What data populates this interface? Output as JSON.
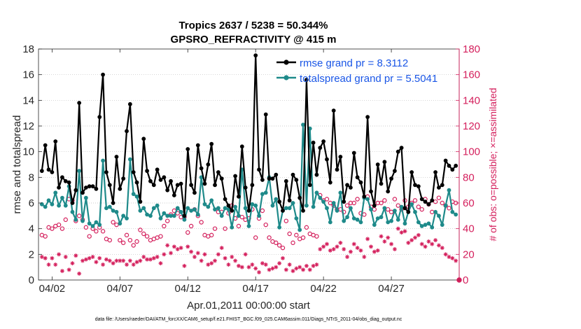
{
  "chart_data": {
    "type": "line",
    "title": "Tropics 2637 / 5238 = 50.344%",
    "subtitle": "GPSRO_REFRACTIVITY @ 415 m",
    "xlabel": "Apr.01,2011 00:00:00 start",
    "ylabel": "rmse and totalspread",
    "ylabel_right": "# of obs: o=possible; ×=assimilated",
    "footer": "data file: /Users/raeder/DAI/ATM_forcXX/CAM6_setup/f.e21.FHIST_BGC.f09_025.CAM6assim.011/Diags_NTrS_2011-04/obs_diag_output.nc",
    "xlim": [
      1.0,
      32.0
    ],
    "ylim": [
      0,
      18
    ],
    "ylim_right": [
      0,
      180
    ],
    "x_ticks": [
      2,
      7,
      12,
      17,
      22,
      27
    ],
    "x_tick_labels": [
      "04/02",
      "04/07",
      "04/12",
      "04/17",
      "04/22",
      "04/27"
    ],
    "y_ticks": [
      0,
      2,
      4,
      6,
      8,
      10,
      12,
      14,
      16,
      18
    ],
    "y_tick_labels": [
      "0",
      "2",
      "4",
      "6",
      "8",
      "10",
      "12",
      "14",
      "16",
      "18"
    ],
    "y_right_ticks": [
      0,
      20,
      40,
      60,
      80,
      100,
      120,
      140,
      160,
      180
    ],
    "y_right_tick_labels": [
      "0",
      "20",
      "40",
      "60",
      "80",
      "100",
      "120",
      "140",
      "160",
      "180"
    ],
    "grid": "horizontal-dotted",
    "legend_position": "top-right",
    "x": [
      1.25,
      1.5,
      1.75,
      2.0,
      2.25,
      2.5,
      2.75,
      3.0,
      3.25,
      3.5,
      3.75,
      4.0,
      4.25,
      4.5,
      4.75,
      5.0,
      5.25,
      5.5,
      5.75,
      6.0,
      6.25,
      6.5,
      6.75,
      7.0,
      7.25,
      7.5,
      7.75,
      8.0,
      8.25,
      8.5,
      8.75,
      9.0,
      9.25,
      9.5,
      9.75,
      10.0,
      10.25,
      10.5,
      10.75,
      11.0,
      11.25,
      11.5,
      11.75,
      12.0,
      12.25,
      12.5,
      12.75,
      13.0,
      13.25,
      13.5,
      13.75,
      14.0,
      14.25,
      14.5,
      14.75,
      15.0,
      15.25,
      15.5,
      15.75,
      16.0,
      16.25,
      16.5,
      16.75,
      17.0,
      17.25,
      17.5,
      17.75,
      18.0,
      18.25,
      18.5,
      18.75,
      19.0,
      19.25,
      19.5,
      19.75,
      20.0,
      20.25,
      20.5,
      20.75,
      21.0,
      21.25,
      21.5,
      21.75,
      22.0,
      22.25,
      22.5,
      22.75,
      23.0,
      23.25,
      23.5,
      23.75,
      24.0,
      24.25,
      24.5,
      24.75,
      25.0,
      25.25,
      25.5,
      25.75,
      26.0,
      26.25,
      26.5,
      26.75,
      27.0,
      27.25,
      27.5,
      27.75,
      28.0,
      28.25,
      28.5,
      28.75,
      29.0,
      29.25,
      29.5,
      29.75,
      30.0,
      30.25,
      30.5,
      30.75,
      31.0,
      31.25,
      31.5,
      31.75
    ],
    "series": [
      {
        "name": "rmse grand pr = 8.3112",
        "color": "#000000",
        "values": [
          8.5,
          10.5,
          8.6,
          8.4,
          10.8,
          7.2,
          8.0,
          7.7,
          7.6,
          6.0,
          7.0,
          13.8,
          6.8,
          7.2,
          7.3,
          7.3,
          7.1,
          12.7,
          16.0,
          8.4,
          7.4,
          6.0,
          9.6,
          7.1,
          7.9,
          11.6,
          13.7,
          8.4,
          7.6,
          6.1,
          11.0,
          8.5,
          7.7,
          7.4,
          8.6,
          7.8,
          8.0,
          7.0,
          7.7,
          6.6,
          7.4,
          7.5,
          5.0,
          10.2,
          7.4,
          6.8,
          10.5,
          8.7,
          7.5,
          9.0,
          10.6,
          7.4,
          8.4,
          7.9,
          6.3,
          5.8,
          5.4,
          8.1,
          6.5,
          10.4,
          7.2,
          5.4,
          7.4,
          17.5,
          8.6,
          7.8,
          12.9,
          7.9,
          7.9,
          8.2,
          6.1,
          5.4,
          7.7,
          6.2,
          8.2,
          7.8,
          6.4,
          5.4,
          15.6,
          7.4,
          10.7,
          8.2,
          10.3,
          10.8,
          9.4,
          7.6,
          13.2,
          8.6,
          9.6,
          6.1,
          7.4,
          7.2,
          9.9,
          8.0,
          7.6,
          6.5,
          12.7,
          6.9,
          5.8,
          9.0,
          7.5,
          9.2,
          6.9,
          7.9,
          8.5,
          10.0,
          10.3,
          5.6,
          5.3,
          8.4,
          7.4,
          7.3,
          6.3,
          6.1,
          5.9,
          6.2,
          8.4,
          7.2,
          7.4,
          9.3,
          8.9,
          8.6,
          8.9
        ]
      },
      {
        "name": "totalspread grand pr = 5.5041",
        "color": "#1e8a8a",
        "values": [
          5.9,
          5.7,
          6.2,
          5.9,
          6.8,
          5.8,
          6.4,
          5.8,
          7.3,
          5.3,
          4.7,
          8.5,
          4.6,
          6.4,
          4.4,
          4.2,
          4.5,
          4.3,
          9.3,
          5.6,
          5.7,
          5.4,
          5.3,
          4.4,
          5.0,
          4.8,
          9.4,
          6.7,
          6.5,
          5.4,
          5.6,
          5.1,
          5.0,
          5.6,
          5.8,
          4.8,
          5.2,
          5.0,
          5.0,
          5.0,
          5.6,
          5.3,
          4.7,
          5.6,
          5.4,
          5.5,
          5.1,
          8.0,
          5.9,
          5.7,
          6.2,
          5.5,
          5.6,
          5.0,
          5.6,
          5.5,
          4.1,
          5.7,
          5.0,
          8.6,
          5.6,
          4.2,
          5.9,
          5.8,
          5.0,
          6.7,
          6.8,
          8.0,
          5.8,
          6.3,
          4.1,
          5.4,
          5.6,
          5.6,
          6.0,
          4.8,
          3.9,
          12.1,
          5.8,
          11.8,
          5.7,
          6.8,
          6.4,
          6.1,
          5.6,
          4.5,
          6.0,
          5.4,
          6.8,
          4.6,
          4.9,
          5.6,
          4.8,
          4.7,
          4.5,
          6.4,
          6.3,
          5.5,
          4.3,
          4.8,
          4.9,
          5.6,
          4.5,
          4.6,
          5.4,
          4.7,
          5.7,
          4.4,
          5.3,
          5.9,
          5.3,
          4.5,
          4.2,
          4.3,
          4.4,
          4.1,
          5.3,
          5.0,
          4.3,
          5.8,
          7.0,
          5.3,
          5.1
        ]
      }
    ],
    "obs_possible": [
      35,
      34,
      41,
      40,
      42,
      43,
      40,
      47,
      63,
      62,
      46,
      50,
      47,
      41,
      34,
      40,
      38,
      41,
      38,
      32,
      31,
      45,
      43,
      31,
      29,
      35,
      31,
      27,
      30,
      39,
      36,
      34,
      31,
      32,
      33,
      34,
      42,
      46,
      51,
      54,
      52,
      49,
      49,
      37,
      42,
      55,
      50,
      45,
      35,
      34,
      35,
      40,
      53,
      53,
      40,
      52,
      58,
      48,
      42,
      49,
      47,
      48,
      55,
      33,
      48,
      54,
      43,
      33,
      30,
      29,
      27,
      25,
      46,
      36,
      29,
      35,
      32,
      33,
      41,
      36,
      35,
      34,
      66,
      62,
      63,
      60,
      58,
      55,
      55,
      53,
      58,
      60,
      60,
      63,
      52,
      51,
      65,
      57,
      55,
      60,
      60,
      62,
      55,
      53,
      63,
      58,
      55,
      62,
      57,
      60,
      62,
      57,
      55,
      63,
      59,
      53,
      61,
      64,
      60,
      58,
      56,
      61,
      60
    ],
    "obs_assimilated": [
      18,
      17,
      12,
      17,
      12,
      20,
      7,
      18,
      8,
      13,
      19,
      5,
      15,
      16,
      17,
      18,
      14,
      17,
      12,
      16,
      15,
      13,
      15,
      15,
      15,
      12,
      15,
      12,
      14,
      15,
      18,
      16,
      16,
      17,
      18,
      13,
      20,
      27,
      21,
      26,
      24,
      25,
      11,
      26,
      22,
      18,
      21,
      15,
      20,
      12,
      13,
      15,
      20,
      25,
      17,
      12,
      18,
      15,
      11,
      10,
      20,
      10,
      12,
      9,
      6,
      13,
      12,
      8,
      9,
      10,
      13,
      17,
      8,
      12,
      7,
      9,
      10,
      8,
      11,
      8,
      11,
      12,
      24,
      26,
      28,
      23,
      24,
      26,
      29,
      24,
      18,
      22,
      28,
      25,
      23,
      18,
      32,
      26,
      22,
      23,
      34,
      30,
      33,
      28,
      24,
      40,
      37,
      38,
      29,
      31,
      33,
      35,
      28,
      26,
      30,
      28,
      31,
      27,
      25,
      20,
      18,
      17,
      15
    ]
  }
}
